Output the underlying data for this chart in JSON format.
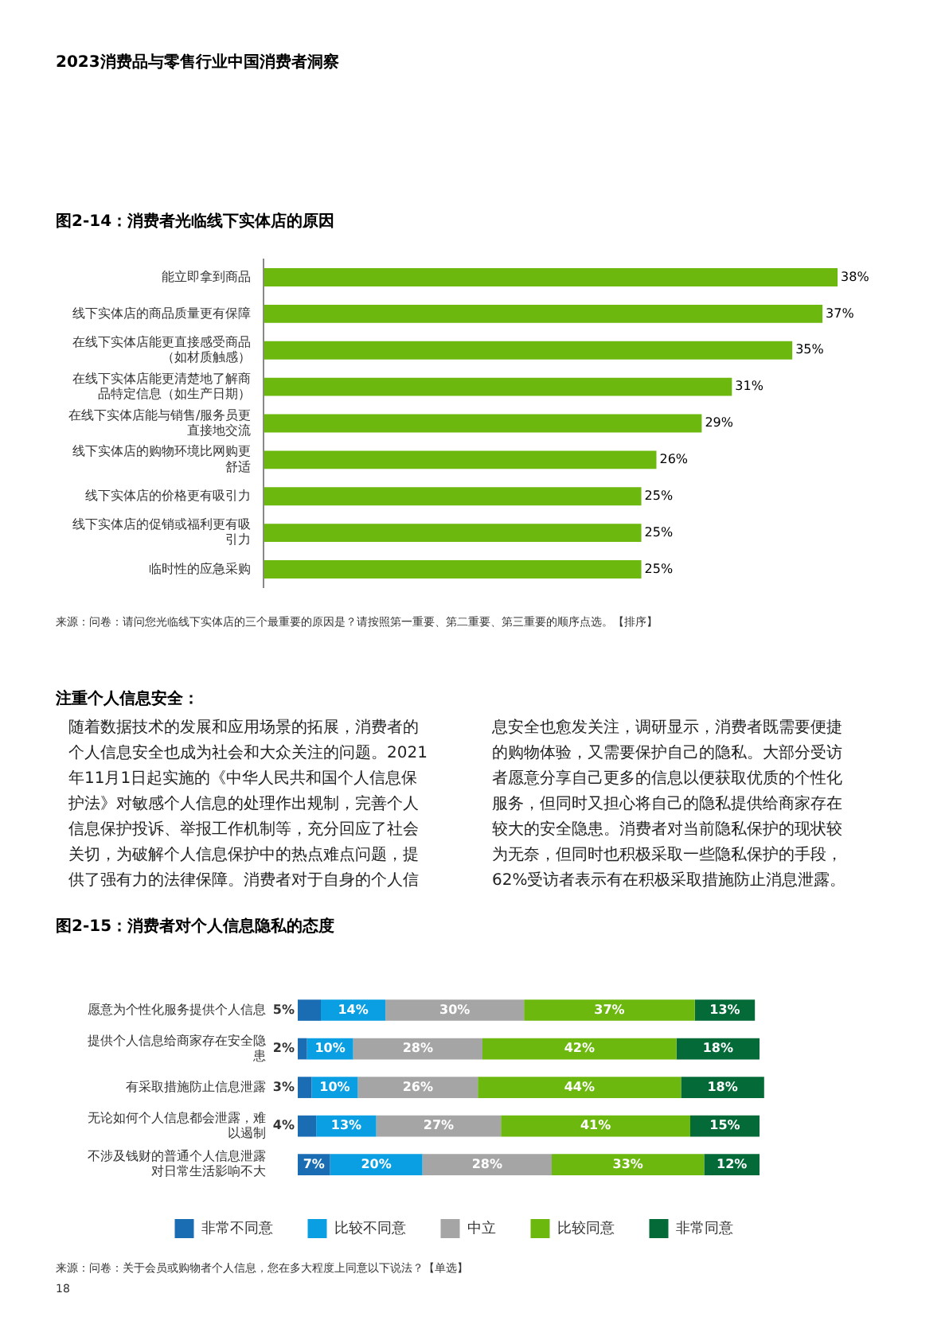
{
  "chart_data": [
    {
      "type": "bar",
      "orientation": "horizontal",
      "title": "图2-14：消费者光临线下实体店的原因",
      "categories": [
        "能立即拿到商品",
        "线下实体店的商品质量更有保障",
        "在线下实体店能更直接感受商品（如材质触感）",
        "在线下实体店能更清楚地了解商品特定信息（如生产日期）",
        "在线下实体店能与销售/服务员更直接地交流",
        "线下实体店的购物环境比网购更舒适",
        "线下实体店的价格更有吸引力",
        "线下实体店的促销或福利更有吸引力",
        "临时性的应急采购"
      ],
      "values": [
        38,
        37,
        35,
        31,
        29,
        26,
        25,
        25,
        25
      ],
      "value_labels": [
        "38%",
        "37%",
        "35%",
        "31%",
        "29%",
        "26%",
        "25%",
        "25%",
        "25%"
      ],
      "color": "#6cb80e",
      "grid": false,
      "legend": false,
      "tick_labels": "y",
      "annotations": [
        "2023消费品与零售行业中国消费者洞察",
        "来源：问卷：请问您光临线下实体店的三个最重要的原因是？请按照第一重要、第二重要、第三重要的顺序点选。【排序】"
      ]
    },
    {
      "type": "other",
      "title": "注重个人信息安全：",
      "annotations": [
        "随着数据技术的发展和应用场景的拓展，消费者的个人信息安全也成为社会和大众关注的问题。2021年11月1日起实施的《中华人民共和国个人信息保护法》对敏感个人信息的处理作出规制，完善个人信息保护投诉、举报工作机制等，充分回应了社会关切，为破解个人信息保护中的热点难点问题，提供了强有力的法律保障。消费者对于自身的个人信息安全也愈发关注，调研显示，消费者既需要便捷的购物体验，又需要保护自己的隐私。大部分受访者愿意分享自己更多的信息以便获取优质的个性化服务，但同时又担心将自己的隐私提供给商家存在较大的安全隐患。消费者对当前隐私保护的现状较为无奈，但同时也积极采取一些隐私保护的手段，62%受访者表示有在积极采取措施防止消息泄露。"
      ]
    },
    {
      "type": "bar",
      "orientation": "horizontal",
      "stacked": true,
      "title": "图2-15：消费者对个人信息隐私的态度",
      "categories": [
        "愿意为个性化服务提供个人信息",
        "提供个人信息给商家存在安全隐患",
        "有采取措施防止信息泄露",
        "无论如何个人信息都会泄露，难以遏制",
        "不涉及钱财的普通个人信息泄露对日常生活影响不大"
      ],
      "series": [
        {
          "name": "非常不同意",
          "color": "#1a6db3",
          "values": [
            5,
            2,
            3,
            4,
            7
          ],
          "value_labels": [
            "5%",
            "2%",
            "3%",
            "4%",
            "7%"
          ]
        },
        {
          "name": "比较不同意",
          "color": "#0a9fe3",
          "values": [
            14,
            10,
            10,
            13,
            20
          ],
          "value_labels": [
            "14%",
            "10%",
            "10%",
            "13%",
            "20%"
          ]
        },
        {
          "name": "中立",
          "color": "#a5a5a5",
          "values": [
            30,
            28,
            26,
            27,
            28
          ],
          "value_labels": [
            "30%",
            "28%",
            "26%",
            "27%",
            "28%"
          ]
        },
        {
          "name": "比较同意",
          "color": "#6cb80e",
          "values": [
            37,
            42,
            44,
            41,
            33
          ],
          "value_labels": [
            "37%",
            "42%",
            "44%",
            "41%",
            "33%"
          ]
        },
        {
          "name": "非常同意",
          "color": "#046a38",
          "values": [
            13,
            18,
            18,
            15,
            12
          ],
          "value_labels": [
            "13%",
            "18%",
            "18%",
            "15%",
            "12%"
          ]
        }
      ],
      "grid": false,
      "legend": "bottom",
      "tick_labels": "y",
      "annotations": [
        "来源：问卷：关于会员或购物者个人信息，您在多大程度上同意以下说法？【单选】",
        "18"
      ]
    }
  ]
}
